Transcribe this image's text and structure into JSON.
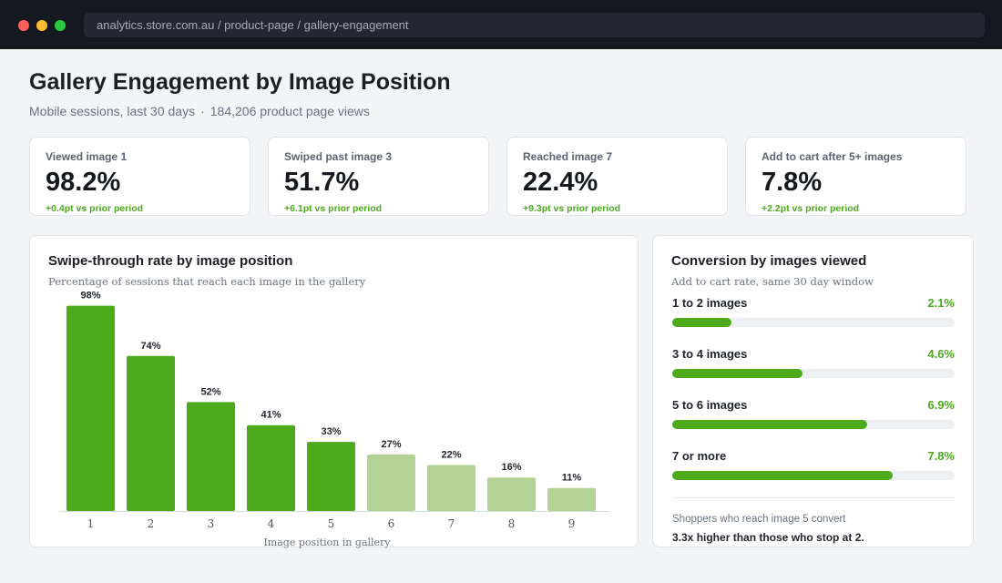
{
  "window": {
    "url": "analytics.store.com.au / product-page / gallery-engagement"
  },
  "header": {
    "title": "Gallery Engagement by Image Position",
    "subtitle_left": "Mobile sessions, last 30 days",
    "subtitle_sep": "·",
    "subtitle_right": "184,206 product page views"
  },
  "kpis": [
    {
      "label": "Viewed image 1",
      "value": "98.2%",
      "delta": "+0.4pt vs prior period"
    },
    {
      "label": "Swiped past image 3",
      "value": "51.7%",
      "delta": "+6.1pt vs prior period"
    },
    {
      "label": "Reached image 7",
      "value": "22.4%",
      "delta": "+9.3pt vs prior period"
    },
    {
      "label": "Add to cart after 5+ images",
      "value": "7.8%",
      "delta": "+2.2pt vs prior period"
    }
  ],
  "swipe_panel": {
    "title": "Swipe-through rate by image position",
    "subtitle": "Percentage of sessions that reach each image in the gallery"
  },
  "chart_data": {
    "type": "bar",
    "title": "Swipe-through rate by image position",
    "subtitle": "Percentage of sessions that reach each image in the gallery",
    "xlabel": "Image position in gallery",
    "ylabel": "",
    "categories": [
      "1",
      "2",
      "3",
      "4",
      "5",
      "6",
      "7",
      "8",
      "9"
    ],
    "values": [
      98,
      74,
      52,
      41,
      33,
      27,
      22,
      16,
      11
    ],
    "data_labels": [
      "98%",
      "74%",
      "52%",
      "41%",
      "33%",
      "27%",
      "22%",
      "16%",
      "11%"
    ],
    "ylim": [
      0,
      100
    ],
    "grid": false,
    "highlight_count": 5,
    "colors": {
      "primary": "#4caa1c",
      "secondary": "#b2d394"
    }
  },
  "conversion": {
    "title": "Conversion by images viewed",
    "subtitle": "Add to cart rate, same 30 day window",
    "max_rate": 10,
    "rows": [
      {
        "label": "1 to 2 images",
        "value_text": "2.1%",
        "rate": 2.1
      },
      {
        "label": "3 to 4 images",
        "value_text": "4.6%",
        "rate": 4.6
      },
      {
        "label": "5 to 6 images",
        "value_text": "6.9%",
        "rate": 6.9
      },
      {
        "label": "7 or more",
        "value_text": "7.8%",
        "rate": 7.8
      }
    ],
    "note": "Shoppers who reach image 5 convert",
    "note_strong": "3.3x higher than those who stop at 2."
  },
  "colors": {
    "accent": "#4caa1c",
    "accent_light": "#b2d394",
    "titlebar": "#141921",
    "background": "#f3f4f6"
  }
}
